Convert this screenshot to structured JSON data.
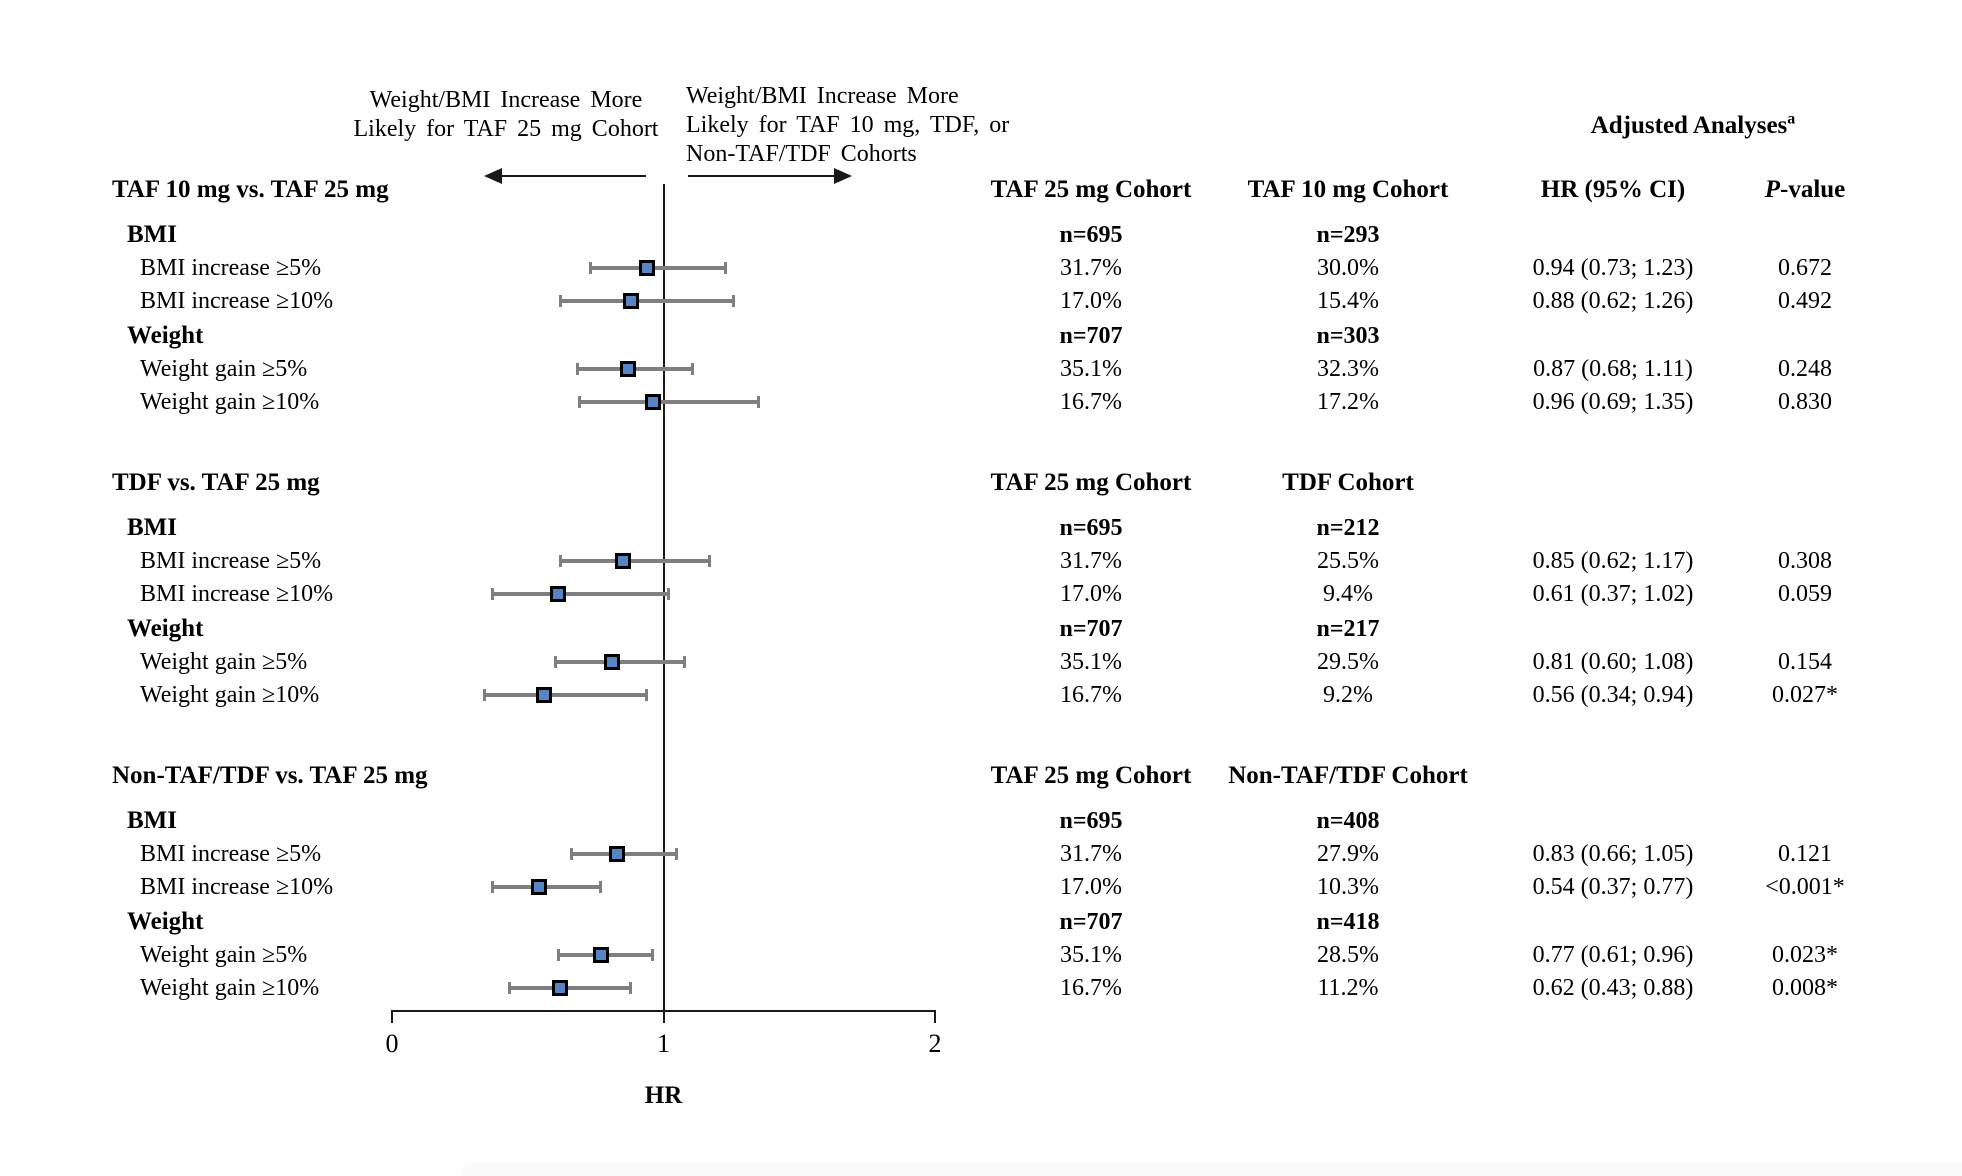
{
  "figure": {
    "annotations": {
      "left_label_lines": [
        "Weight/BMI Increase More",
        "Likely for TAF 25 mg Cohort"
      ],
      "right_label_lines": [
        "Weight/BMI Increase More",
        "Likely for TAF 10 mg, TDF, or",
        "Non-TAF/TDF Cohorts"
      ]
    },
    "header": {
      "adjusted_analyses": "Adjusted Analyses",
      "adjusted_analyses_superscript": "a",
      "hr_ci": "HR (95% CI)",
      "p_value_italic": "P",
      "p_value_rest": "-value"
    }
  },
  "chart_data": {
    "type": "forest",
    "x_axis": {
      "label": "HR",
      "min": 0,
      "max": 2,
      "ticks": [
        "0",
        "1",
        "2"
      ],
      "reference_line": 1
    },
    "sections": [
      {
        "title": "TAF 10 mg vs. TAF 25 mg",
        "cohort_columns": [
          "TAF 25 mg Cohort",
          "TAF 10 mg Cohort"
        ],
        "groups": [
          {
            "label": "BMI",
            "n": [
              "n=695",
              "n=293"
            ],
            "rows": [
              {
                "label": "BMI increase ≥5%",
                "pct": [
                  "31.7%",
                  "30.0%"
                ],
                "hr": 0.94,
                "ci_low": 0.73,
                "ci_high": 1.23,
                "hr_ci_text": "0.94 (0.73; 1.23)",
                "p_value": "0.672"
              },
              {
                "label": "BMI increase ≥10%",
                "pct": [
                  "17.0%",
                  "15.4%"
                ],
                "hr": 0.88,
                "ci_low": 0.62,
                "ci_high": 1.26,
                "hr_ci_text": "0.88 (0.62; 1.26)",
                "p_value": "0.492"
              }
            ]
          },
          {
            "label": "Weight",
            "n": [
              "n=707",
              "n=303"
            ],
            "rows": [
              {
                "label": "Weight gain ≥5%",
                "pct": [
                  "35.1%",
                  "32.3%"
                ],
                "hr": 0.87,
                "ci_low": 0.68,
                "ci_high": 1.11,
                "hr_ci_text": "0.87 (0.68; 1.11)",
                "p_value": "0.248"
              },
              {
                "label": "Weight gain ≥10%",
                "pct": [
                  "16.7%",
                  "17.2%"
                ],
                "hr": 0.96,
                "ci_low": 0.69,
                "ci_high": 1.35,
                "hr_ci_text": "0.96 (0.69; 1.35)",
                "p_value": "0.830"
              }
            ]
          }
        ]
      },
      {
        "title": "TDF vs. TAF 25 mg",
        "cohort_columns": [
          "TAF 25 mg Cohort",
          "TDF Cohort"
        ],
        "groups": [
          {
            "label": "BMI",
            "n": [
              "n=695",
              "n=212"
            ],
            "rows": [
              {
                "label": "BMI increase ≥5%",
                "pct": [
                  "31.7%",
                  "25.5%"
                ],
                "hr": 0.85,
                "ci_low": 0.62,
                "ci_high": 1.17,
                "hr_ci_text": "0.85 (0.62; 1.17)",
                "p_value": "0.308"
              },
              {
                "label": "BMI increase ≥10%",
                "pct": [
                  "17.0%",
                  "9.4%"
                ],
                "hr": 0.61,
                "ci_low": 0.37,
                "ci_high": 1.02,
                "hr_ci_text": "0.61 (0.37; 1.02)",
                "p_value": "0.059"
              }
            ]
          },
          {
            "label": "Weight",
            "n": [
              "n=707",
              "n=217"
            ],
            "rows": [
              {
                "label": "Weight gain ≥5%",
                "pct": [
                  "35.1%",
                  "29.5%"
                ],
                "hr": 0.81,
                "ci_low": 0.6,
                "ci_high": 1.08,
                "hr_ci_text": "0.81 (0.60; 1.08)",
                "p_value": "0.154"
              },
              {
                "label": "Weight gain ≥10%",
                "pct": [
                  "16.7%",
                  "9.2%"
                ],
                "hr": 0.56,
                "ci_low": 0.34,
                "ci_high": 0.94,
                "hr_ci_text": "0.56 (0.34; 0.94)",
                "p_value": "0.027*"
              }
            ]
          }
        ]
      },
      {
        "title": "Non-TAF/TDF vs. TAF 25 mg",
        "cohort_columns": [
          "TAF 25 mg Cohort",
          "Non-TAF/TDF Cohort"
        ],
        "groups": [
          {
            "label": "BMI",
            "n": [
              "n=695",
              "n=408"
            ],
            "rows": [
              {
                "label": "BMI increase ≥5%",
                "pct": [
                  "31.7%",
                  "27.9%"
                ],
                "hr": 0.83,
                "ci_low": 0.66,
                "ci_high": 1.05,
                "hr_ci_text": "0.83 (0.66; 1.05)",
                "p_value": "0.121"
              },
              {
                "label": "BMI increase ≥10%",
                "pct": [
                  "17.0%",
                  "10.3%"
                ],
                "hr": 0.54,
                "ci_low": 0.37,
                "ci_high": 0.77,
                "hr_ci_text": "0.54 (0.37; 0.77)",
                "p_value": "<0.001*"
              }
            ]
          },
          {
            "label": "Weight",
            "n": [
              "n=707",
              "n=418"
            ],
            "rows": [
              {
                "label": "Weight gain ≥5%",
                "pct": [
                  "35.1%",
                  "28.5%"
                ],
                "hr": 0.77,
                "ci_low": 0.61,
                "ci_high": 0.96,
                "hr_ci_text": "0.77 (0.61; 0.96)",
                "p_value": "0.023*"
              },
              {
                "label": "Weight gain ≥10%",
                "pct": [
                  "16.7%",
                  "11.2%"
                ],
                "hr": 0.62,
                "ci_low": 0.43,
                "ci_high": 0.88,
                "hr_ci_text": "0.62 (0.43; 0.88)",
                "p_value": "0.008*"
              }
            ]
          }
        ]
      }
    ]
  },
  "colors": {
    "marker_fill": "#5585C5",
    "marker_border": "#000000",
    "ci_line": "#7F7F7F",
    "axis_line": "#1A1A1A",
    "text": "#000000",
    "background": "#FFFFFF"
  }
}
